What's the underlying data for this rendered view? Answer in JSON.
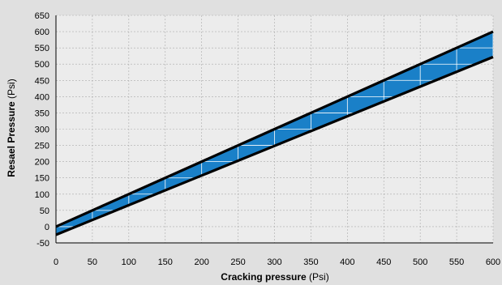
{
  "chart_data": {
    "type": "area",
    "xlabel_bold": "Cracking pressure",
    "xlabel_unit": " (Psi)",
    "ylabel_bold": "Resael Pressure",
    "ylabel_unit": " (Psi)",
    "xlim": [
      0,
      600
    ],
    "ylim": [
      -50,
      650
    ],
    "xticks": [
      "0",
      "50",
      "100",
      "150",
      "200",
      "250",
      "300",
      "350",
      "400",
      "450",
      "500",
      "550",
      "600"
    ],
    "yticks": [
      "-50",
      "0",
      "50",
      "100",
      "150",
      "200",
      "250",
      "300",
      "350",
      "400",
      "450",
      "500",
      "550",
      "600",
      "650"
    ],
    "grid": true,
    "series": [
      {
        "x": [
          0,
          600
        ],
        "y": [
          0,
          600
        ]
      },
      {
        "x": [
          0,
          600
        ],
        "y": [
          -25,
          522
        ]
      }
    ],
    "colors": {
      "band": "#1a80c8",
      "boundary": "#000000",
      "background": "#e0e0e0",
      "plot_background": "#ececec",
      "grid": "#aaaaaa"
    }
  }
}
